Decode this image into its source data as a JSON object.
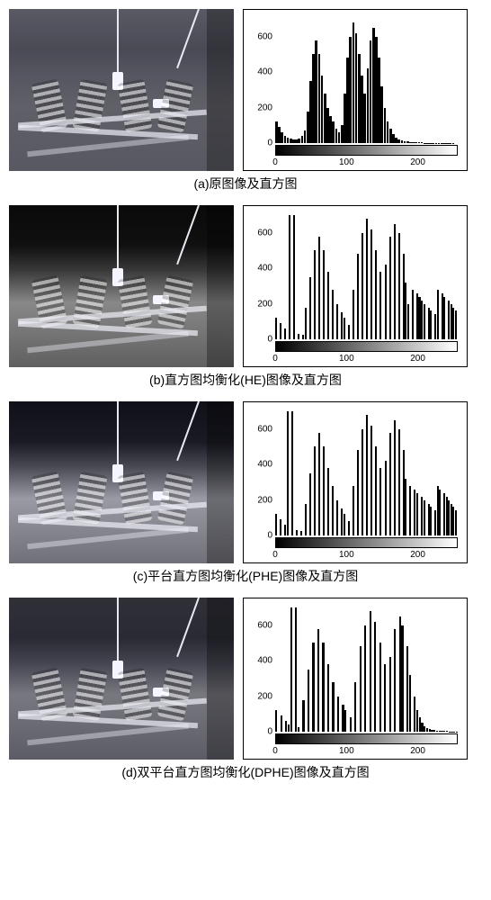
{
  "panels": [
    {
      "caption": "(a)原图像及直方图",
      "thermal_class": "thermal-a",
      "y_ticks": [
        0,
        200,
        400,
        600
      ],
      "y_max": 700,
      "x_ticks": [
        0,
        100,
        200
      ],
      "x_max": 256,
      "hist_values": [
        120,
        90,
        60,
        40,
        30,
        25,
        20,
        18,
        25,
        40,
        70,
        180,
        350,
        500,
        580,
        500,
        380,
        280,
        200,
        150,
        120,
        80,
        60,
        100,
        280,
        480,
        600,
        680,
        620,
        500,
        380,
        280,
        420,
        580,
        650,
        600,
        480,
        320,
        200,
        120,
        80,
        50,
        30,
        20,
        15,
        10,
        8,
        6,
        5,
        4,
        3,
        3,
        2,
        2,
        2,
        2,
        2,
        2,
        1,
        1,
        1,
        1,
        1,
        0
      ],
      "bar_color": "#000000"
    },
    {
      "caption": "(b)直方图均衡化(HE)图像及直方图",
      "thermal_class": "thermal-b",
      "y_ticks": [
        0,
        200,
        400,
        600
      ],
      "y_max": 700,
      "x_ticks": [
        0,
        100,
        200
      ],
      "x_max": 256,
      "hist_values": [
        120,
        0,
        90,
        0,
        60,
        0,
        700,
        0,
        700,
        0,
        30,
        0,
        25,
        180,
        0,
        350,
        0,
        500,
        0,
        580,
        0,
        500,
        0,
        380,
        0,
        280,
        0,
        200,
        0,
        150,
        120,
        0,
        80,
        0,
        280,
        0,
        480,
        0,
        600,
        0,
        680,
        0,
        620,
        0,
        500,
        0,
        380,
        0,
        420,
        0,
        580,
        0,
        650,
        0,
        600,
        0,
        480,
        320,
        200,
        0,
        280,
        0,
        260,
        240,
        220,
        200,
        0,
        180,
        160,
        0,
        140,
        280,
        0,
        260,
        240,
        0,
        220,
        200,
        180,
        160
      ],
      "bar_color": "#000000"
    },
    {
      "caption": "(c)平台直方图均衡化(PHE)图像及直方图",
      "thermal_class": "thermal-c",
      "y_ticks": [
        0,
        200,
        400,
        600
      ],
      "y_max": 700,
      "x_ticks": [
        0,
        100,
        200
      ],
      "x_max": 256,
      "hist_values": [
        120,
        0,
        90,
        0,
        60,
        700,
        0,
        700,
        0,
        30,
        0,
        25,
        0,
        180,
        0,
        350,
        0,
        500,
        0,
        580,
        0,
        500,
        0,
        380,
        0,
        280,
        0,
        200,
        0,
        150,
        120,
        0,
        80,
        0,
        280,
        0,
        480,
        0,
        600,
        0,
        680,
        0,
        620,
        0,
        500,
        0,
        380,
        0,
        420,
        0,
        580,
        0,
        650,
        0,
        600,
        0,
        480,
        320,
        0,
        280,
        0,
        260,
        240,
        0,
        220,
        200,
        0,
        180,
        160,
        0,
        140,
        280,
        260,
        0,
        240,
        220,
        200,
        180,
        160,
        140
      ],
      "bar_color": "#000000"
    },
    {
      "caption": "(d)双平台直方图均衡化(DPHE)图像及直方图",
      "thermal_class": "thermal-d",
      "y_ticks": [
        0,
        200,
        400,
        600
      ],
      "y_max": 700,
      "x_ticks": [
        0,
        100,
        200
      ],
      "x_max": 256,
      "hist_values": [
        120,
        0,
        90,
        0,
        60,
        40,
        700,
        0,
        700,
        25,
        0,
        180,
        0,
        350,
        0,
        500,
        0,
        580,
        0,
        500,
        0,
        380,
        0,
        280,
        0,
        200,
        0,
        150,
        120,
        0,
        80,
        0,
        280,
        0,
        480,
        0,
        600,
        0,
        680,
        0,
        620,
        0,
        500,
        0,
        380,
        0,
        420,
        0,
        580,
        0,
        650,
        600,
        0,
        480,
        320,
        0,
        200,
        120,
        80,
        50,
        30,
        20,
        15,
        10,
        8,
        6,
        5,
        4,
        3,
        3,
        2,
        2,
        2,
        2
      ],
      "bar_color": "#000000"
    }
  ]
}
